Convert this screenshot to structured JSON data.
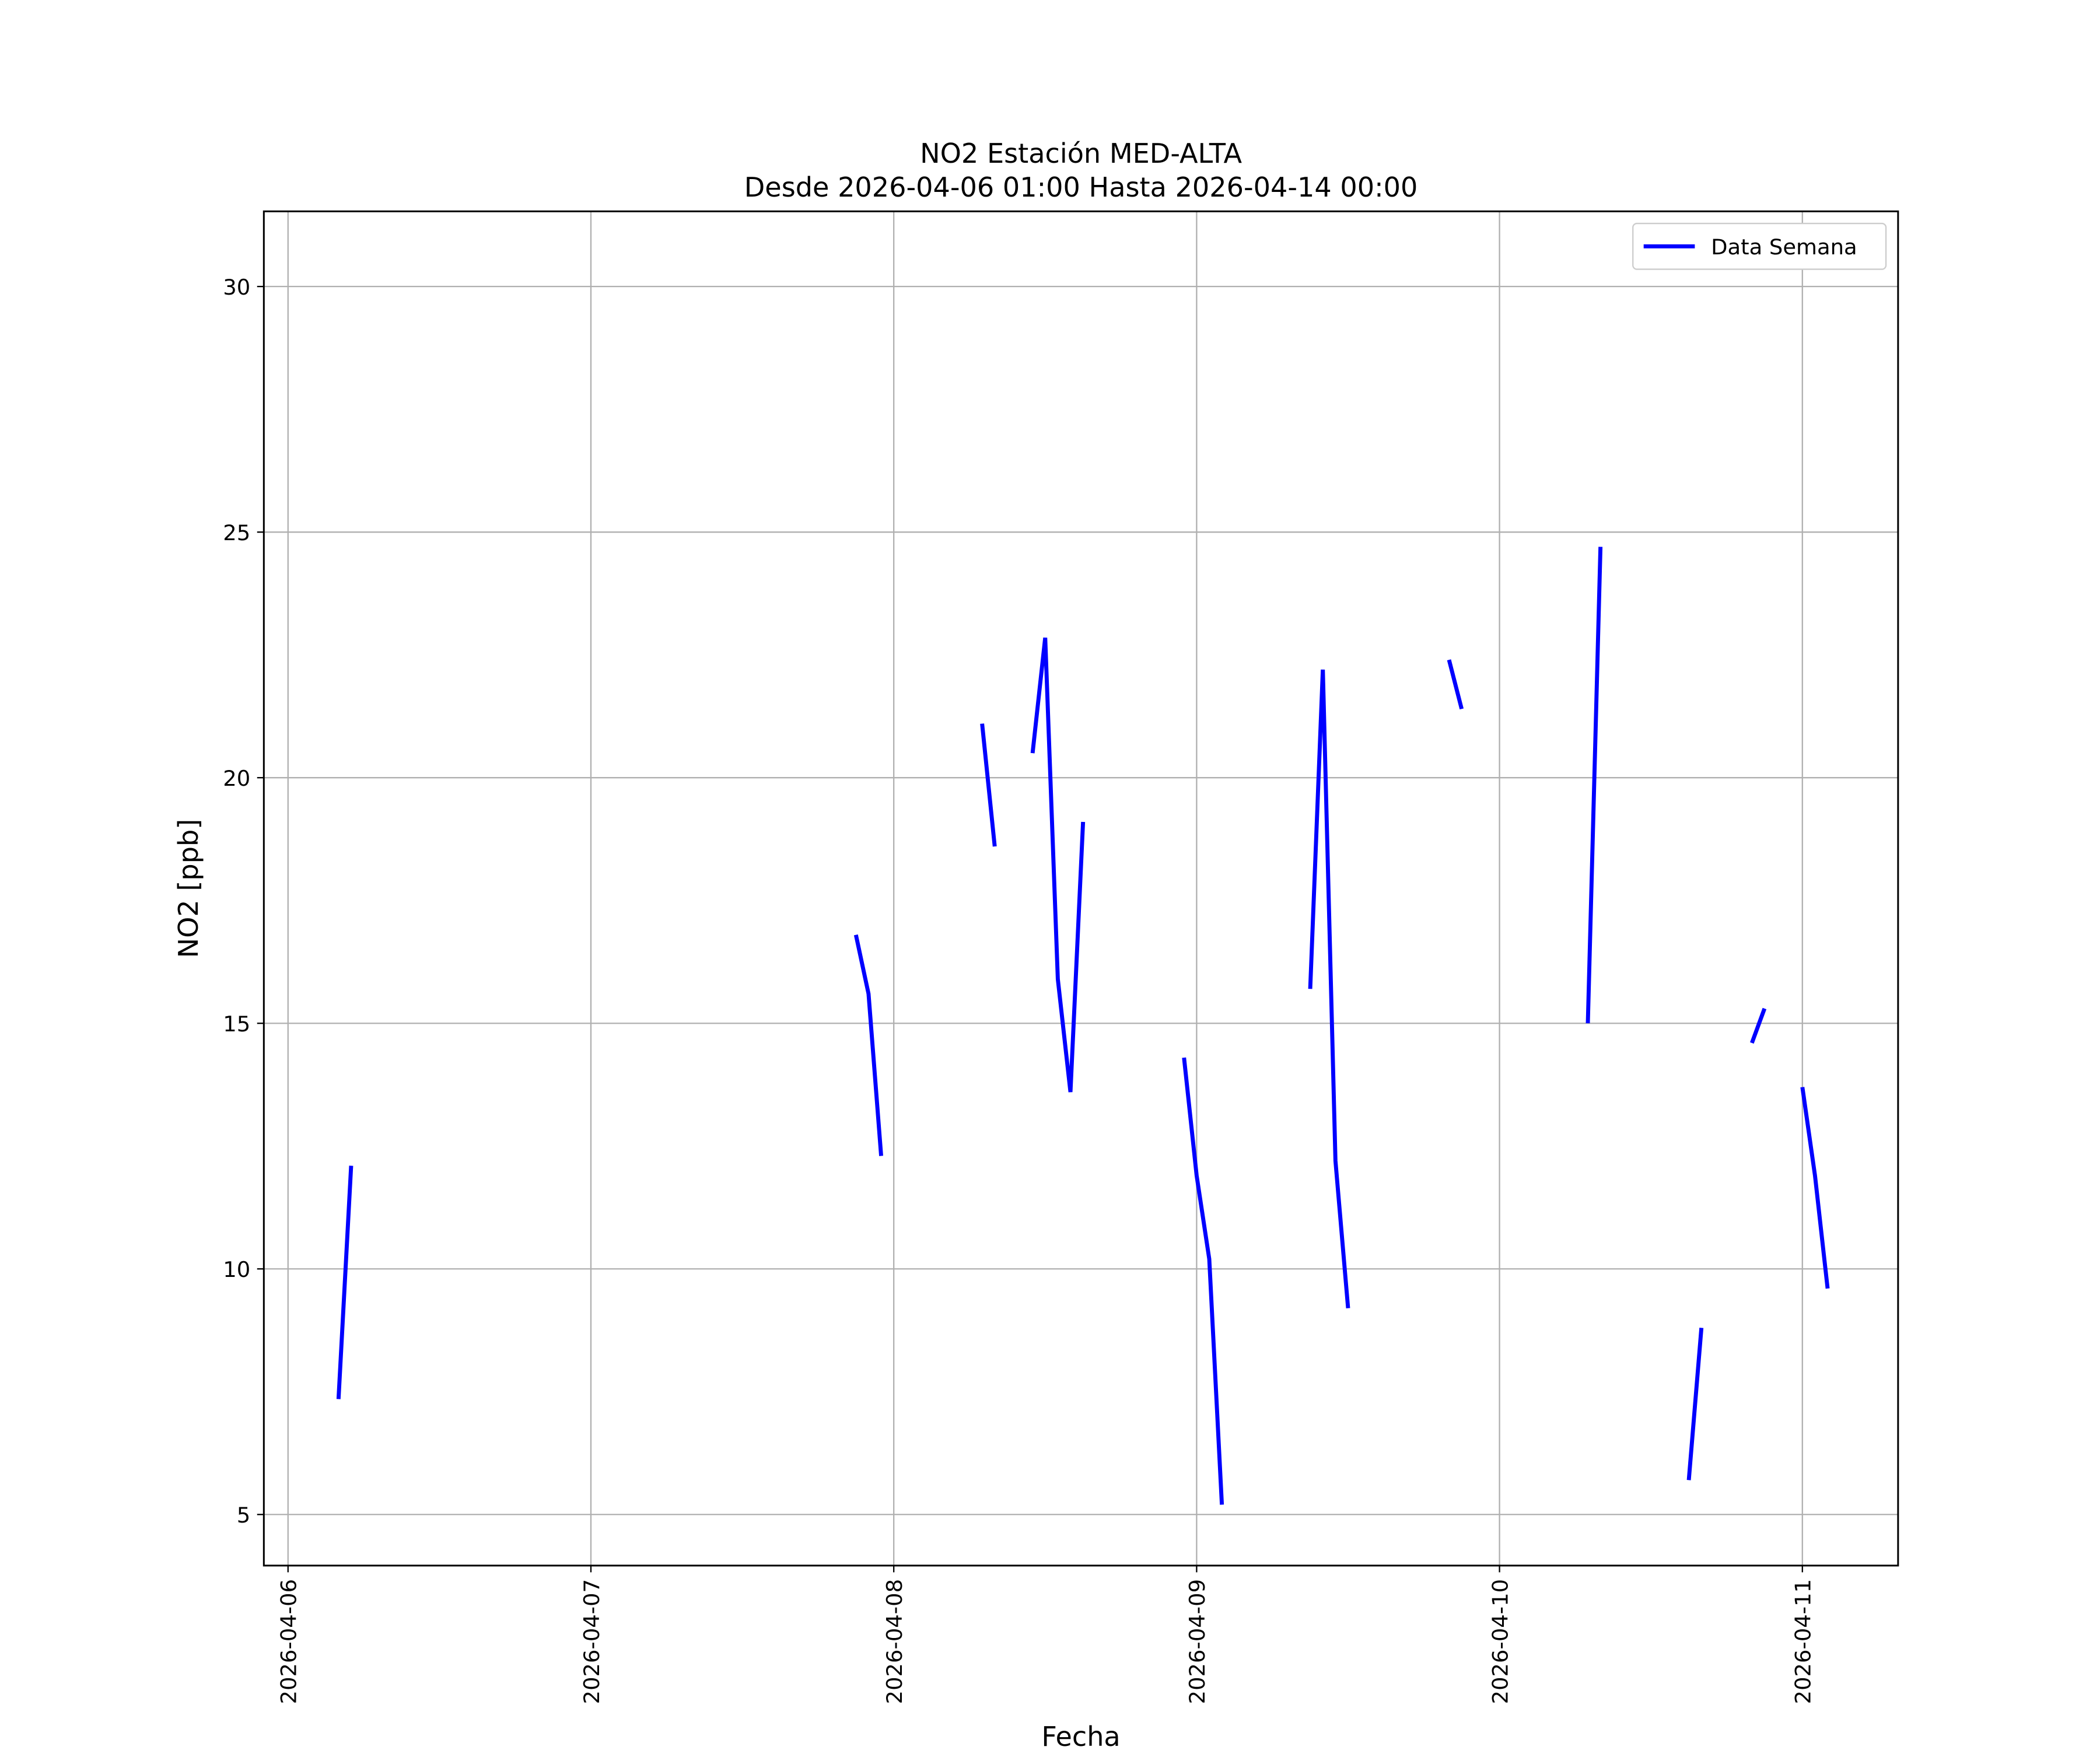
{
  "chart_data": {
    "type": "line",
    "title": "NO2 Estación MED-ALTA",
    "subtitle": "Desde 2026-04-06 01:00 Hasta 2026-04-14 00:00",
    "xlabel": "Fecha",
    "ylabel": "NO2 [ppb]",
    "x": [
      "2026-04-06 04:00",
      "2026-04-06 05:00",
      "2026-04-06 06:00",
      "2026-04-07 21:00",
      "2026-04-07 22:00",
      "2026-04-07 23:00",
      "2026-04-08 00:00",
      "2026-04-08 07:00",
      "2026-04-08 08:00",
      "2026-04-08 09:00",
      "2026-04-08 11:00",
      "2026-04-08 12:00",
      "2026-04-08 13:00",
      "2026-04-08 14:00",
      "2026-04-08 15:00",
      "2026-04-08 16:00",
      "2026-04-08 23:00",
      "2026-04-09 00:00",
      "2026-04-09 01:00",
      "2026-04-09 02:00",
      "2026-04-09 03:00",
      "2026-04-09 09:00",
      "2026-04-09 10:00",
      "2026-04-09 11:00",
      "2026-04-09 12:00",
      "2026-04-09 13:00",
      "2026-04-09 20:00",
      "2026-04-09 21:00",
      "2026-04-09 22:00",
      "2026-04-10 07:00",
      "2026-04-10 08:00",
      "2026-04-10 09:00",
      "2026-04-10 15:00",
      "2026-04-10 16:00",
      "2026-04-10 17:00",
      "2026-04-10 20:00",
      "2026-04-10 21:00",
      "2026-04-10 22:00",
      "2026-04-11 00:00",
      "2026-04-11 01:00",
      "2026-04-11 02:00"
    ],
    "series": [
      {
        "name": "Data Semana",
        "color": "#0000ff",
        "values": [
          7.35,
          12.1,
          null,
          16.8,
          15.6,
          12.3,
          null,
          21.1,
          18.6,
          null,
          20.5,
          22.85,
          15.9,
          13.6,
          19.1,
          null,
          14.3,
          11.9,
          10.2,
          5.2,
          null,
          15.7,
          22.2,
          12.2,
          9.2,
          null,
          22.4,
          21.4,
          null,
          15.0,
          24.7,
          null,
          5.7,
          8.8,
          null,
          14.6,
          15.3,
          null,
          13.7,
          11.9,
          9.6
        ]
      }
    ],
    "xlim": [
      "2026-04-05 22:05",
      "2026-04-11 07:35"
    ],
    "xticks": [
      "2026-04-06",
      "2026-04-07",
      "2026-04-08",
      "2026-04-09",
      "2026-04-10",
      "2026-04-11"
    ],
    "ylim": [
      3.96,
      31.53
    ],
    "yticks": [
      5,
      10,
      15,
      20,
      25,
      30
    ],
    "grid": true,
    "legend": "upper right"
  }
}
